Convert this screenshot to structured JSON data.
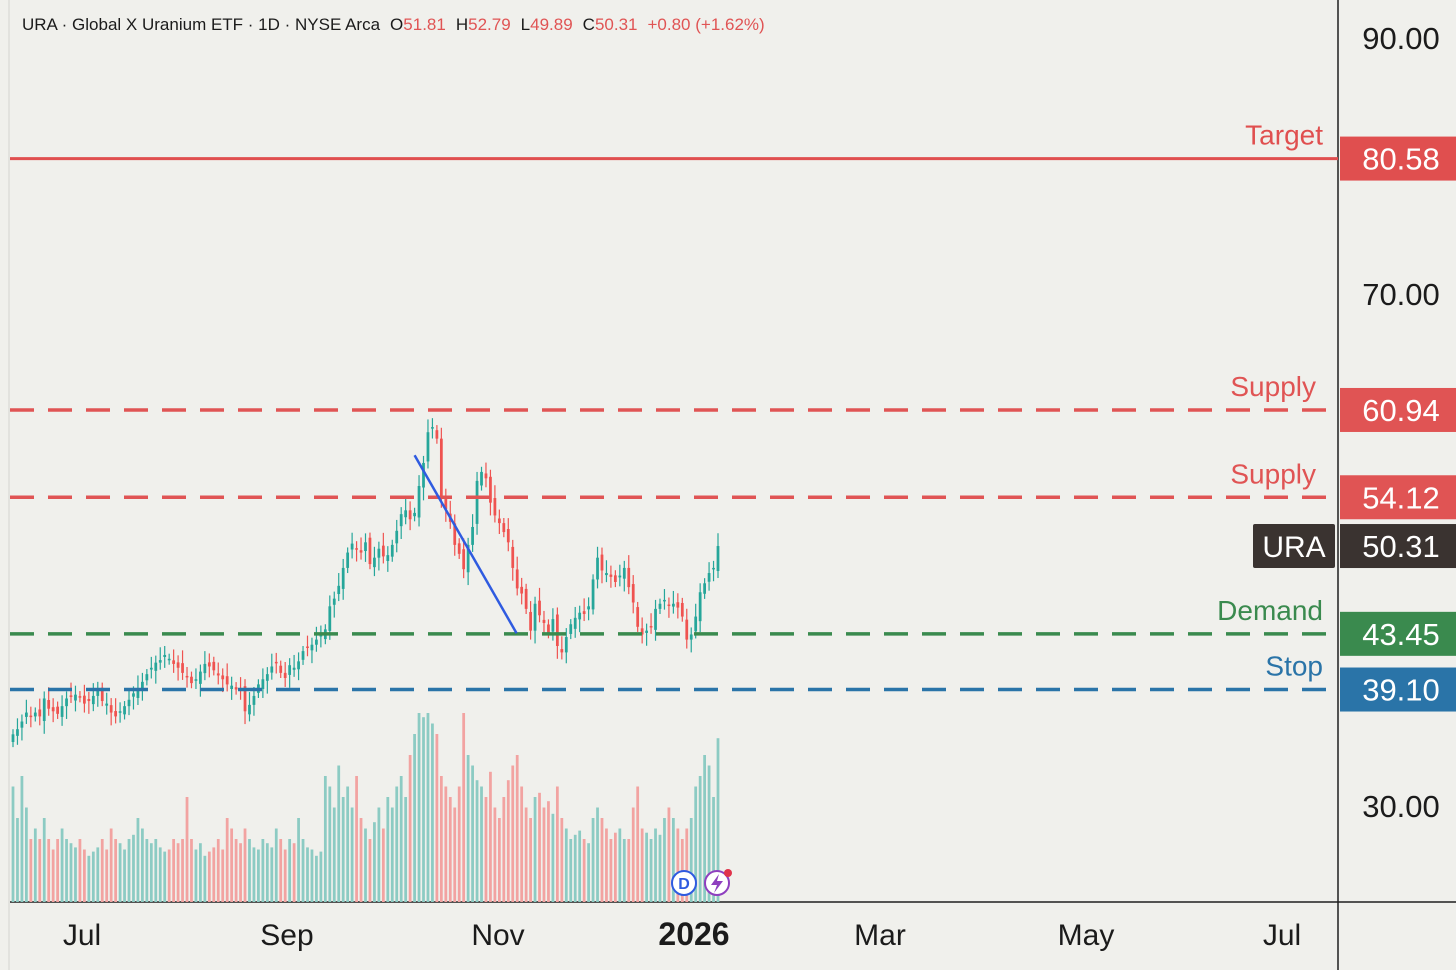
{
  "header": {
    "symbol_line": "URA · Global X Uranium ETF · 1D · NYSE Arca",
    "o_label": "O",
    "o_value": "51.81",
    "h_label": "H",
    "h_value": "52.79",
    "l_label": "L",
    "l_value": "49.89",
    "c_label": "C",
    "c_value": "50.31",
    "change": "+0.80 (+1.62%)"
  },
  "colors": {
    "up": "#26a69a",
    "down": "#ef5350",
    "up_volume": "#8ccbc3",
    "down_volume": "#f2a3a1",
    "target": "#e04f4f",
    "supply": "#e05454",
    "demand": "#3a8a4e",
    "stop": "#2a74a8",
    "trendline": "#2f5be0",
    "price_tag": "#3a3330",
    "background": "#f0f0ec"
  },
  "chart_data": {
    "type": "candlestick",
    "symbol": "URA",
    "y_axis": {
      "min": 20,
      "max": 91,
      "ticks": [
        "90.00",
        "70.00",
        "30.00"
      ]
    },
    "x_axis": {
      "ticks": [
        "Jul",
        "Sep",
        "Nov",
        "2026",
        "Mar",
        "May",
        "Jul"
      ],
      "bold_tick": "2026"
    },
    "levels": [
      {
        "label": "Target",
        "value": 80.58,
        "text": "80.58",
        "style": "solid",
        "color": "#e04f4f"
      },
      {
        "label": "Supply",
        "value": 60.94,
        "text": "60.94",
        "style": "dashed",
        "color": "#e05454"
      },
      {
        "label": "Supply",
        "value": 54.12,
        "text": "54.12",
        "style": "dashed",
        "color": "#e05454"
      },
      {
        "label": "Demand",
        "value": 43.45,
        "text": "43.45",
        "style": "dashed",
        "color": "#3a8a4e"
      },
      {
        "label": "Stop",
        "value": 39.1,
        "text": "39.10",
        "style": "dashed",
        "color": "#2a74a8"
      }
    ],
    "last_price": {
      "symbol": "URA",
      "value": 50.31,
      "text": "50.31"
    },
    "trendline": {
      "from": {
        "date": "2025-10-24",
        "price": 57.4
      },
      "to": {
        "date": "2025-11-25",
        "price": 43.5
      }
    },
    "closes": [
      35.6,
      36.0,
      36.6,
      37.3,
      37.0,
      37.3,
      37.0,
      38.4,
      37.6,
      37.4,
      37.2,
      37.8,
      38.4,
      38.6,
      38.7,
      38.5,
      38.0,
      38.2,
      38.6,
      39.0,
      38.2,
      38.0,
      37.3,
      37.0,
      37.4,
      37.8,
      38.3,
      38.8,
      39.2,
      39.7,
      40.3,
      40.8,
      41.2,
      41.4,
      41.8,
      41.5,
      41.1,
      40.8,
      40.4,
      40.1,
      39.6,
      39.9,
      40.5,
      41.1,
      40.9,
      40.6,
      40.2,
      39.9,
      39.5,
      39.4,
      39.1,
      39.0,
      37.4,
      37.9,
      38.6,
      39.5,
      39.9,
      40.3,
      40.9,
      41.2,
      40.4,
      40.0,
      41.0,
      40.8,
      41.3,
      42.1,
      42.4,
      42.6,
      43.0,
      43.4,
      43.8,
      45.6,
      46.2,
      47.2,
      48.6,
      49.8,
      50.5,
      50.1,
      49.8,
      50.6,
      48.9,
      49.4,
      50.1,
      49.5,
      49.6,
      50.4,
      51.5,
      52.8,
      53.1,
      52.4,
      52.9,
      55.0,
      56.8,
      59.2,
      59.6,
      58.7,
      54.0,
      53.2,
      52.2,
      50.4,
      49.7,
      48.5,
      50.4,
      51.8,
      55.4,
      56.1,
      55.6,
      53.7,
      52.7,
      52.1,
      51.4,
      50.6,
      48.6,
      47.0,
      46.6,
      45.4,
      43.7,
      45.8,
      44.9,
      44.3,
      43.5,
      44.6,
      42.5,
      42.0,
      43.2,
      44.2,
      44.7,
      45.1,
      45.0,
      45.6,
      47.7,
      49.4,
      48.4,
      48.2,
      47.9,
      47.5,
      48.0,
      48.6,
      47.1,
      45.9,
      44.0,
      43.4,
      43.7,
      44.0,
      45.4,
      45.8,
      46.1,
      45.7,
      45.8,
      45.5,
      44.8,
      43.0,
      43.4,
      44.8,
      46.7,
      47.4,
      48.2,
      48.6,
      50.31
    ],
    "volume_relative": [
      0.55,
      0.4,
      0.6,
      0.45,
      0.3,
      0.35,
      0.3,
      0.4,
      0.3,
      0.25,
      0.3,
      0.35,
      0.3,
      0.28,
      0.26,
      0.3,
      0.25,
      0.22,
      0.24,
      0.26,
      0.3,
      0.25,
      0.35,
      0.3,
      0.28,
      0.25,
      0.3,
      0.32,
      0.4,
      0.35,
      0.3,
      0.28,
      0.3,
      0.26,
      0.24,
      0.25,
      0.3,
      0.28,
      0.3,
      0.5,
      0.3,
      0.25,
      0.28,
      0.22,
      0.24,
      0.26,
      0.3,
      0.25,
      0.4,
      0.35,
      0.3,
      0.28,
      0.35,
      0.3,
      0.26,
      0.25,
      0.3,
      0.28,
      0.26,
      0.35,
      0.3,
      0.25,
      0.3,
      0.28,
      0.4,
      0.3,
      0.26,
      0.25,
      0.22,
      0.24,
      0.6,
      0.55,
      0.45,
      0.65,
      0.5,
      0.55,
      0.45,
      0.6,
      0.4,
      0.35,
      0.3,
      0.38,
      0.45,
      0.35,
      0.5,
      0.45,
      0.55,
      0.6,
      0.5,
      0.7,
      0.8,
      0.9,
      0.88,
      0.9,
      0.85,
      0.8,
      0.6,
      0.55,
      0.5,
      0.45,
      0.55,
      0.9,
      0.7,
      0.65,
      0.58,
      0.55,
      0.5,
      0.62,
      0.45,
      0.4,
      0.5,
      0.58,
      0.65,
      0.7,
      0.55,
      0.45,
      0.4,
      0.5,
      0.52,
      0.45,
      0.48,
      0.42,
      0.55,
      0.4,
      0.35,
      0.3,
      0.32,
      0.34,
      0.3,
      0.28,
      0.4,
      0.45,
      0.4,
      0.35,
      0.3,
      0.33,
      0.35,
      0.3,
      0.3,
      0.45,
      0.55,
      0.35,
      0.33,
      0.3,
      0.35,
      0.32,
      0.4,
      0.45,
      0.4,
      0.35,
      0.3,
      0.35,
      0.4,
      0.55,
      0.6,
      0.7,
      0.65,
      0.5,
      0.78
    ]
  }
}
